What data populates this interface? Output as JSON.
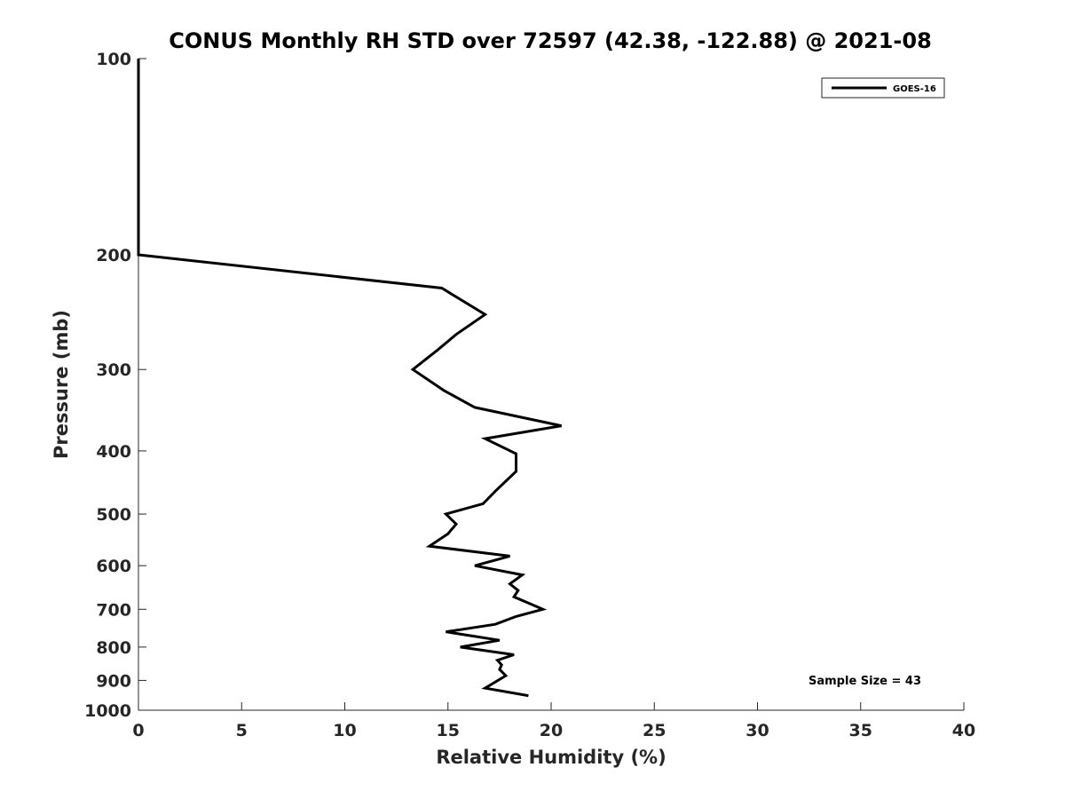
{
  "chart_data": {
    "type": "line",
    "title": "CONUS Monthly RH STD over 72597 (42.38, -122.88) @ 2021-08",
    "xlabel": "Relative Humidity (%)",
    "ylabel": "Pressure (mb)",
    "xlim": [
      0,
      40
    ],
    "ylim": [
      100,
      1000
    ],
    "yscale": "log",
    "y_reversed": true,
    "grid": false,
    "legend_position": "top-right",
    "x_ticks": [
      "0",
      "5",
      "10",
      "15",
      "20",
      "25",
      "30",
      "35",
      "40"
    ],
    "y_ticks": [
      "100",
      "200",
      "300",
      "400",
      "500",
      "600",
      "700",
      "800",
      "900",
      "1000"
    ],
    "series": [
      {
        "name": "GOES-16",
        "color": "#000000",
        "points": [
          [
            0,
            100
          ],
          [
            0,
            150
          ],
          [
            0,
            200
          ],
          [
            14.7,
            225
          ],
          [
            16.8,
            247
          ],
          [
            15.4,
            265
          ],
          [
            14.5,
            280
          ],
          [
            13.3,
            300
          ],
          [
            14.8,
            323
          ],
          [
            16.3,
            343
          ],
          [
            20.5,
            366
          ],
          [
            16.8,
            383
          ],
          [
            18.3,
            404
          ],
          [
            18.3,
            430
          ],
          [
            17.3,
            461
          ],
          [
            16.7,
            482
          ],
          [
            14.9,
            500
          ],
          [
            15.4,
            518
          ],
          [
            15.0,
            536
          ],
          [
            14.1,
            560
          ],
          [
            18.0,
            580
          ],
          [
            16.3,
            600
          ],
          [
            18.6,
            620
          ],
          [
            18.0,
            640
          ],
          [
            18.4,
            655
          ],
          [
            18.2,
            670
          ],
          [
            19.6,
            700
          ],
          [
            18.3,
            718
          ],
          [
            17.3,
            738
          ],
          [
            14.9,
            758
          ],
          [
            17.5,
            781
          ],
          [
            15.6,
            800
          ],
          [
            18.2,
            822
          ],
          [
            17.4,
            838
          ],
          [
            17.6,
            852
          ],
          [
            17.5,
            866
          ],
          [
            17.8,
            885
          ],
          [
            16.8,
            925
          ],
          [
            18.9,
            950
          ]
        ]
      }
    ],
    "annotation": "Sample Size = 43"
  }
}
